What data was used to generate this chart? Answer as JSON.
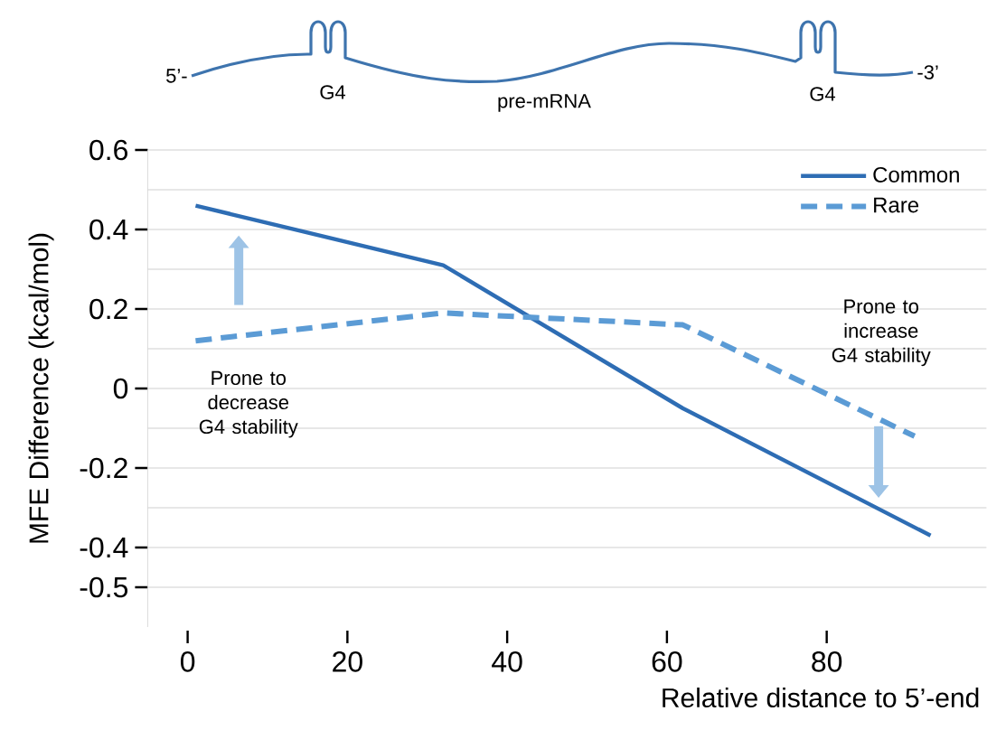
{
  "chart_data": {
    "type": "line",
    "xlabel": "Relative distance to 5’-end",
    "ylabel": "MFE Difference (kcal/mol)",
    "xlim": [
      -5,
      100
    ],
    "xticks": [
      0,
      20,
      40,
      60,
      80
    ],
    "ylim": [
      -0.6,
      0.6
    ],
    "yticks": [
      0.6,
      {
        "value": 0.5,
        "label": null
      },
      0.4,
      {
        "value": 0.3,
        "label": null
      },
      0.2,
      {
        "value": 0.1,
        "label": null
      },
      0,
      {
        "value": -0.1,
        "label": null
      },
      -0.2,
      {
        "value": -0.3,
        "label": null
      },
      -0.4,
      -0.5
    ],
    "grid": "y",
    "legend": "top right",
    "series": [
      {
        "name": "Common",
        "color": "#2e6db4",
        "line_style": "solid",
        "x": [
          1,
          32,
          62,
          93
        ],
        "values": [
          0.46,
          0.31,
          -0.05,
          -0.37
        ]
      },
      {
        "name": "Rare",
        "color": "#5b9bd5",
        "line_style": "dashed",
        "x": [
          1,
          32,
          62,
          91
        ],
        "values": [
          0.12,
          0.19,
          0.16,
          -0.12
        ]
      }
    ],
    "annotations": [
      "5’-",
      "G4",
      "pre-mRNA",
      "G4",
      "-3’",
      "Prone to decrease G4 stability",
      "Prone to increase G4 stability"
    ]
  }
}
